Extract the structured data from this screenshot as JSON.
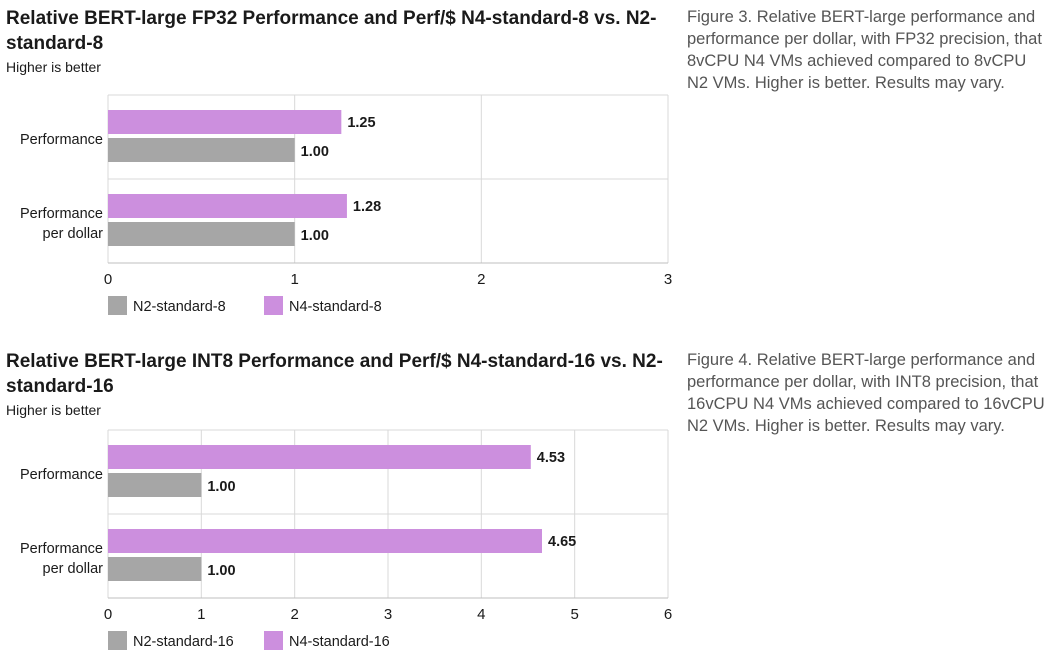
{
  "chart_data": [
    {
      "type": "bar",
      "orientation": "horizontal",
      "title": "Relative BERT-large FP32 Performance and Perf/$ N4-standard-8 vs. N2-standard-8",
      "subtitle": "Higher is better",
      "categories": [
        "Performance",
        "Performance per dollar"
      ],
      "series": [
        {
          "name": "N4-standard-8",
          "color": "#cc8fde",
          "values": [
            1.25,
            1.28
          ],
          "labels": [
            "1.25",
            "1.28"
          ]
        },
        {
          "name": "N2-standard-8",
          "color": "#a6a6a6",
          "values": [
            1.0,
            1.0
          ],
          "labels": [
            "1.00",
            "1.00"
          ]
        }
      ],
      "xlim": [
        0,
        3
      ],
      "xticks": [
        "0",
        "1",
        "2",
        "3"
      ],
      "grid": true,
      "legend": [
        "N2-standard-8",
        "N4-standard-8"
      ],
      "legend_placement": "bottom-left",
      "caption": "Figure 3. Relative BERT-large performance and performance per dollar, with FP32 precision, that 8vCPU N4 VMs achieved compared to 8vCPU N2 VMs. Higher is better. Results may vary."
    },
    {
      "type": "bar",
      "orientation": "horizontal",
      "title": "Relative BERT-large INT8 Performance and Perf/$ N4-standard-16 vs. N2-standard-16",
      "subtitle": "Higher is better",
      "categories": [
        "Performance",
        "Performance per dollar"
      ],
      "series": [
        {
          "name": "N4-standard-16",
          "color": "#cc8fde",
          "values": [
            4.53,
            4.65
          ],
          "labels": [
            "4.53",
            "4.65"
          ]
        },
        {
          "name": "N2-standard-16",
          "color": "#a6a6a6",
          "values": [
            1.0,
            1.0
          ],
          "labels": [
            "1.00",
            "1.00"
          ]
        }
      ],
      "xlim": [
        0,
        6
      ],
      "xticks": [
        "0",
        "1",
        "2",
        "3",
        "4",
        "5",
        "6"
      ],
      "grid": true,
      "legend": [
        "N2-standard-16",
        "N4-standard-16"
      ],
      "legend_placement": "bottom-left",
      "caption": "Figure 4. Relative BERT-large performance and performance per dollar, with INT8 precision, that 16vCPU N4 VMs achieved compared to 16vCPU N2 VMs. Higher is better. Results may vary."
    }
  ]
}
